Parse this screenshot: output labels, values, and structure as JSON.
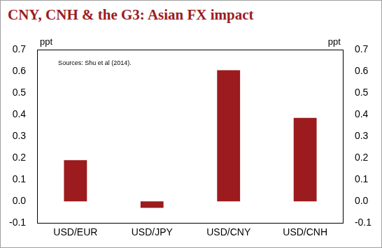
{
  "chart_data": {
    "type": "bar",
    "title": "CNY, CNH & the G3: Asian FX impact",
    "y_label": "ppt",
    "y2_label": "ppt",
    "annotation": "Sources: Shu et al (2014).",
    "categories": [
      "USD/EUR",
      "USD/JPY",
      "USD/CNY",
      "USD/CNH"
    ],
    "values": [
      0.19,
      -0.03,
      0.605,
      0.385
    ],
    "color": "#9b1b1e",
    "ylim": [
      -0.1,
      0.7
    ],
    "yticks": [
      -0.1,
      {
        "value": 0,
        "label": "0.0"
      },
      0.1,
      0.2,
      0.3,
      0.4,
      0.5,
      0.6,
      0.7
    ],
    "y2lim": [
      -0.1,
      0.7
    ],
    "y2ticks": [
      -0.1,
      {
        "value": 0,
        "label": "0.0"
      },
      0.1,
      0.2,
      0.3,
      0.4,
      0.5,
      0.6,
      0.7
    ],
    "grid": false
  }
}
